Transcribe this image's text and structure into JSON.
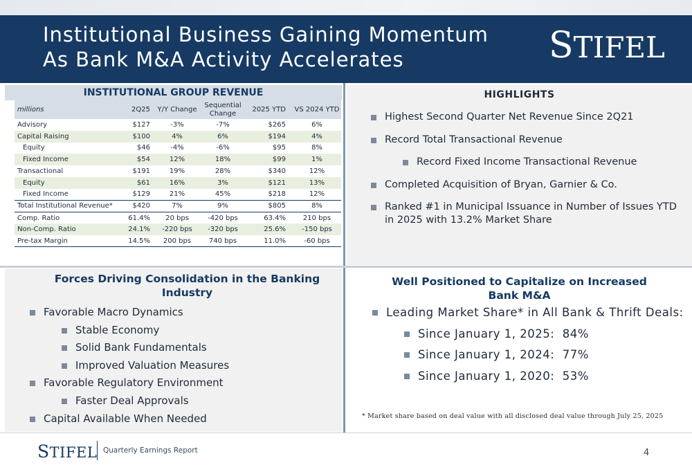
{
  "header": {
    "title_line1": "Institutional Business Gaining Momentum",
    "title_line2": "As Bank M&A Activity Accelerates",
    "logo_initial": "S",
    "logo_rest": "TIFEL"
  },
  "revenue_table": {
    "title": "INSTITUTIONAL GROUP REVENUE",
    "columns": [
      "millions",
      "2Q25",
      "Y/Y Change",
      "Sequential Change",
      "2025 YTD",
      "VS 2024 YTD"
    ],
    "rows": [
      {
        "label": "Advisory",
        "q": "$127",
        "yy": "-3%",
        "seq": "-7%",
        "ytd": "$265",
        "vs": "6%"
      },
      {
        "label": "Capital Raising",
        "q": "$100",
        "yy": "4%",
        "seq": "6%",
        "ytd": "$194",
        "vs": "4%"
      },
      {
        "label": "Equity",
        "q": "$46",
        "yy": "-4%",
        "seq": "-6%",
        "ytd": "$95",
        "vs": "8%"
      },
      {
        "label": "Fixed Income",
        "q": "$54",
        "yy": "12%",
        "seq": "18%",
        "ytd": "$99",
        "vs": "1%"
      },
      {
        "label": "Transactional",
        "q": "$191",
        "yy": "19%",
        "seq": "28%",
        "ytd": "$340",
        "vs": "12%"
      },
      {
        "label": "Equity",
        "q": "$61",
        "yy": "16%",
        "seq": "3%",
        "ytd": "$121",
        "vs": "13%"
      },
      {
        "label": "Fixed Income",
        "q": "$129",
        "yy": "21%",
        "seq": "45%",
        "ytd": "$218",
        "vs": "12%"
      },
      {
        "label": "Total Institutional Revenue*",
        "q": "$420",
        "yy": "7%",
        "seq": "9%",
        "ytd": "$805",
        "vs": "8%"
      },
      {
        "label": "Comp. Ratio",
        "q": "61.4%",
        "yy": "20 bps",
        "seq": "-420 bps",
        "ytd": "63.4%",
        "vs": "210 bps"
      },
      {
        "label": "Non-Comp. Ratio",
        "q": "24.1%",
        "yy": "-220 bps",
        "seq": "-320 bps",
        "ytd": "25.6%",
        "vs": "-150 bps"
      },
      {
        "label": "Pre-tax Margin",
        "q": "14.5%",
        "yy": "200 bps",
        "seq": "740 bps",
        "ytd": "11.0%",
        "vs": "-60 bps"
      }
    ]
  },
  "highlights": {
    "title": "HIGHLIGHTS",
    "items": [
      "Highest Second Quarter Net Revenue Since 2Q21",
      "Record Total Transactional Revenue",
      "Record Fixed Income Transactional Revenue",
      "Completed Acquisition of Bryan, Garnier & Co.",
      "Ranked #1 in Municipal Issuance in Number of Issues YTD in 2025 with 13.2% Market Share"
    ]
  },
  "forces": {
    "title_line1": "Forces Driving Consolidation in the Banking",
    "title_line2": "Industry",
    "items": [
      "Favorable Macro Dynamics",
      "Stable Economy",
      "Solid Bank Fundamentals",
      "Improved Valuation Measures",
      "Favorable Regulatory Environment",
      "Faster Deal Approvals",
      "Capital Available When Needed"
    ]
  },
  "well_positioned": {
    "title_line1": "Well Positioned to Capitalize on Increased",
    "title_line2": "Bank M&A",
    "items": [
      "Leading Market Share* in All Bank & Thrift Deals:",
      "Since January 1, 2025:  84%",
      "Since January 1, 2024:  77%",
      "Since January 1, 2020:  53%"
    ],
    "footnote": "* Market share based on deal value with all disclosed deal value through July 25, 2025"
  },
  "footer": {
    "logo_initial": "S",
    "logo_rest": "TIFEL",
    "report_label": "Quarterly Earnings Report",
    "page_number": "4"
  },
  "colors": {
    "navy": "#163a63",
    "table_header": "#d6dde6",
    "row_shade": "#e9efe0",
    "panel_gray": "#f1f1f1",
    "bullet": "#7a8a9e"
  }
}
